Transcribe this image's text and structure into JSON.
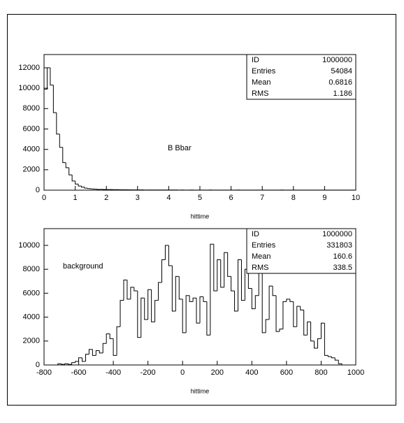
{
  "chart_data": [
    {
      "type": "histogram",
      "xlabel": "hittime",
      "annotation": "B Bbar",
      "color": "#000000",
      "stats": [
        {
          "label": "ID",
          "value": 1000000
        },
        {
          "label": "Entries",
          "value": 54084
        },
        {
          "label": "Mean",
          "value": 0.6816
        },
        {
          "label": "RMS",
          "value": 1.186
        }
      ],
      "bins": [
        0,
        0.1,
        0.2,
        0.3,
        0.4,
        0.5,
        0.6,
        0.7,
        0.8,
        0.9,
        1,
        1.1,
        1.2,
        1.3,
        1.4,
        1.5,
        1.6,
        1.7,
        1.8,
        1.9,
        2,
        2.1,
        2.2,
        2.3,
        2.4,
        2.5,
        2.6,
        2.7,
        2.8,
        2.9,
        3,
        3.1,
        3.2,
        3.3,
        3.4,
        3.5,
        3.6,
        3.7,
        3.8,
        3.9,
        4,
        4.1,
        4.2,
        4.3,
        4.4,
        4.5,
        4.6,
        4.7,
        4.8,
        4.9,
        5,
        5.1,
        5.2,
        5.3,
        5.4,
        5.5,
        5.6,
        5.7,
        5.8,
        5.9,
        6,
        6.1,
        6.2,
        6.3,
        6.4,
        6.5,
        6.6,
        6.7,
        6.8,
        6.9,
        7,
        7.1,
        7.2,
        7.3,
        7.4,
        7.5,
        7.6,
        7.7,
        7.8,
        7.9,
        8,
        8.1,
        8.2,
        8.3,
        8.4,
        8.5,
        8.6,
        8.7,
        8.8,
        8.9,
        9,
        9.1,
        9.2,
        9.3,
        9.4,
        9.5,
        9.6,
        9.7,
        9.8,
        9.9,
        10
      ],
      "values": [
        9900,
        12000,
        10300,
        7600,
        5500,
        4200,
        2700,
        2200,
        1500,
        900,
        600,
        400,
        300,
        200,
        150,
        120,
        100,
        80,
        80,
        70,
        60,
        60,
        50,
        50,
        40,
        40,
        40,
        30,
        30,
        30,
        30,
        30,
        20,
        20,
        20,
        20,
        20,
        20,
        20,
        20,
        20,
        20,
        20,
        10,
        20,
        10,
        10,
        20,
        10,
        10,
        10,
        10,
        10,
        20,
        10,
        10,
        10,
        10,
        10,
        10,
        10,
        10,
        20,
        10,
        10,
        10,
        10,
        10,
        10,
        10,
        10,
        10,
        10,
        10,
        10,
        10,
        20,
        10,
        10,
        10,
        10,
        10,
        10,
        10,
        10,
        10,
        10,
        10,
        10,
        10,
        10,
        10,
        10,
        10,
        10,
        10,
        10,
        10,
        10,
        10
      ],
      "xlim": [
        0,
        10
      ],
      "ylim": [
        0,
        13300
      ],
      "xticks": [
        0,
        1,
        2,
        3,
        4,
        5,
        6,
        7,
        8,
        9,
        10
      ],
      "yticks": [
        0,
        2000,
        4000,
        6000,
        8000,
        10000,
        12000
      ]
    },
    {
      "type": "histogram",
      "xlabel": "hittime",
      "annotation": "background",
      "color": "#000000",
      "stats": [
        {
          "label": "ID",
          "value": 1000000
        },
        {
          "label": "Entries",
          "value": 331803
        },
        {
          "label": "Mean",
          "value": 160.6
        },
        {
          "label": "RMS",
          "value": 338.5
        }
      ],
      "bins": [
        -800,
        -780,
        -760,
        -740,
        -720,
        -700,
        -680,
        -660,
        -640,
        -620,
        -600,
        -580,
        -560,
        -540,
        -520,
        -500,
        -480,
        -460,
        -440,
        -420,
        -400,
        -380,
        -360,
        -340,
        -320,
        -300,
        -280,
        -260,
        -240,
        -220,
        -200,
        -180,
        -160,
        -140,
        -120,
        -100,
        -80,
        -60,
        -40,
        -20,
        0,
        20,
        40,
        60,
        80,
        100,
        120,
        140,
        160,
        180,
        200,
        220,
        240,
        260,
        280,
        300,
        320,
        340,
        360,
        380,
        400,
        420,
        440,
        460,
        480,
        500,
        520,
        540,
        560,
        580,
        600,
        620,
        640,
        660,
        680,
        700,
        720,
        740,
        760,
        780,
        800,
        820,
        840,
        860,
        880,
        900,
        920,
        940,
        960,
        980,
        1000
      ],
      "values": [
        0,
        0,
        0,
        0,
        100,
        50,
        100,
        50,
        200,
        300,
        600,
        300,
        900,
        1300,
        800,
        1200,
        1000,
        1800,
        2600,
        2200,
        800,
        3200,
        5400,
        7100,
        5500,
        6500,
        6200,
        2300,
        5600,
        3800,
        6300,
        3600,
        5400,
        6900,
        8800,
        10000,
        8300,
        4500,
        7400,
        5500,
        2700,
        5800,
        5300,
        5600,
        3500,
        5700,
        5300,
        2500,
        10100,
        6200,
        8800,
        6500,
        9400,
        7400,
        6200,
        4500,
        8800,
        5400,
        8000,
        6400,
        4700,
        5800,
        8800,
        2700,
        3800,
        6600,
        5800,
        2800,
        3000,
        5300,
        5500,
        5300,
        3200,
        4900,
        4600,
        2500,
        3600,
        2000,
        1400,
        2200,
        3500,
        800,
        700,
        600,
        400,
        100,
        0,
        0,
        0,
        0
      ],
      "xlim": [
        -800,
        1000
      ],
      "ylim": [
        0,
        11400
      ],
      "xticks": [
        -800,
        -600,
        -400,
        -200,
        0,
        200,
        400,
        600,
        800,
        1000
      ],
      "yticks": [
        0,
        2000,
        4000,
        6000,
        8000,
        10000
      ]
    }
  ]
}
